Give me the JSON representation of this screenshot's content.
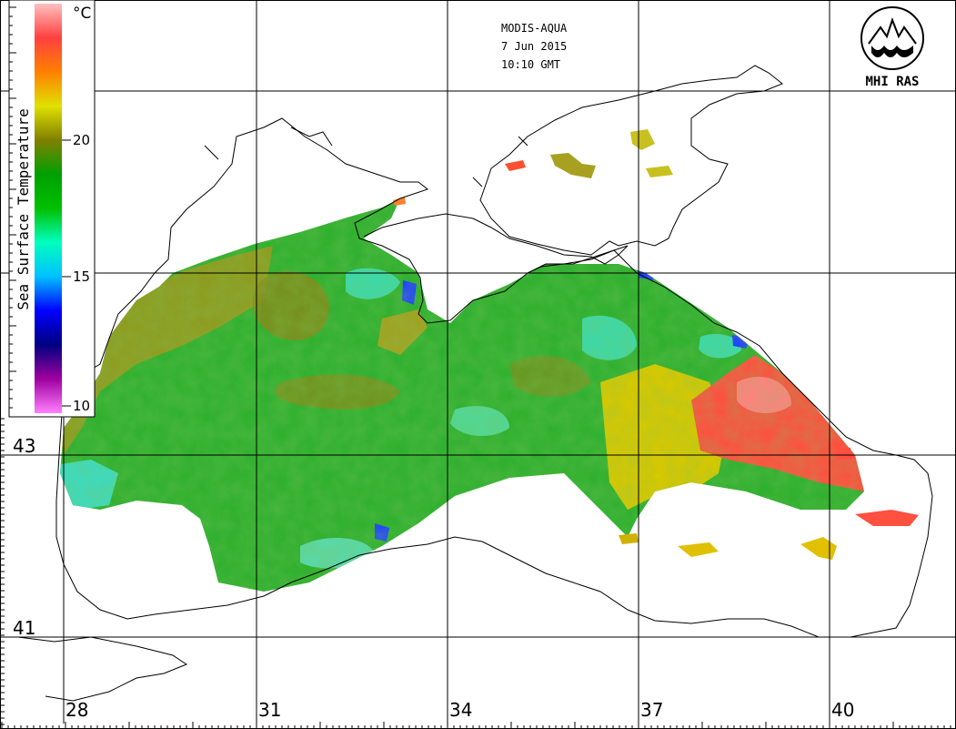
{
  "header": {
    "satellite": "MODIS-AQUA",
    "date": "7 Jun 2015",
    "time": "10:10 GMT"
  },
  "logo": {
    "text": "MHI RAS"
  },
  "legend": {
    "title": "Sea Surface Temperature",
    "unit": "°C",
    "ticks": [
      "20",
      "15",
      "10"
    ],
    "range": [
      10,
      25
    ],
    "colors": [
      "#ff80ff",
      "#a000a0",
      "#000080",
      "#0000ff",
      "#00c0ff",
      "#00ffc0",
      "#00c000",
      "#00a000",
      "#808000",
      "#e0e000",
      "#ff8000",
      "#ff4040",
      "#ffc0c0"
    ]
  },
  "grid": {
    "longitudes": [
      "28",
      "31",
      "34",
      "37",
      "40"
    ],
    "latitudes": [
      "43",
      "41"
    ]
  },
  "palette": {
    "sea_green": "#30b030",
    "sea_olive": "#9a9a20",
    "sea_yellow": "#e0d000",
    "sea_red": "#ff5040",
    "sea_cyan": "#40e0c0",
    "sea_blue": "#2040ff"
  }
}
